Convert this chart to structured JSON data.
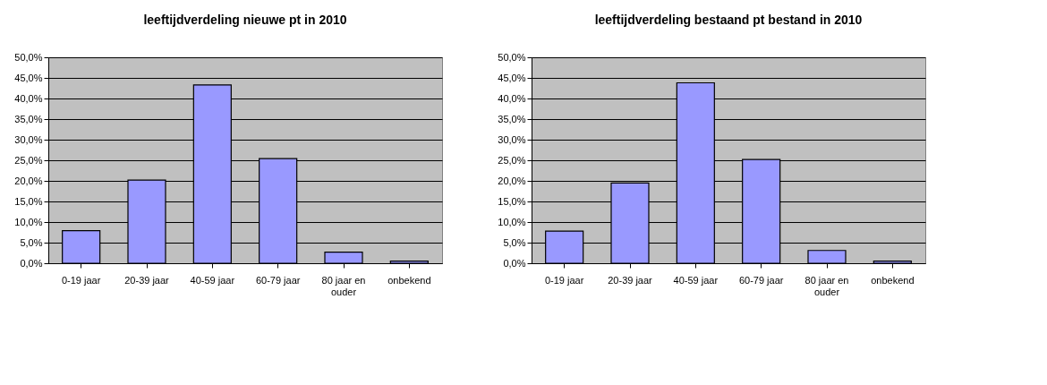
{
  "chart_data": [
    {
      "type": "bar",
      "title": "leeftijdverdeling nieuwe pt in 2010",
      "categories": [
        "0-19 jaar",
        "20-39 jaar",
        "40-59 jaar",
        "60-79 jaar",
        "80 jaar en ouder",
        "onbekend"
      ],
      "values": [
        7.9,
        20.2,
        43.3,
        25.4,
        2.7,
        0.5
      ],
      "color": "#9999ff",
      "ylim": [
        0,
        50
      ],
      "yticks": [
        {
          "value": 0,
          "label": "0,0%"
        },
        {
          "value": 5,
          "label": "5,0%"
        },
        {
          "value": 10,
          "label": "10,0%"
        },
        {
          "value": 15,
          "label": "15,0%"
        },
        {
          "value": 20,
          "label": "20,0%"
        },
        {
          "value": 25,
          "label": "25,0%"
        },
        {
          "value": 30,
          "label": "30,0%"
        },
        {
          "value": 35,
          "label": "35,0%"
        },
        {
          "value": 40,
          "label": "40,0%"
        },
        {
          "value": 45,
          "label": "45,0%"
        },
        {
          "value": 50,
          "label": "50,0%"
        }
      ],
      "grid": "y"
    },
    {
      "type": "bar",
      "title": "leeftijdverdeling bestaand pt bestand in 2010",
      "categories": [
        "0-19 jaar",
        "20-39 jaar",
        "40-59 jaar",
        "60-79 jaar",
        "80 jaar en ouder",
        "onbekend"
      ],
      "values": [
        7.8,
        19.5,
        43.8,
        25.2,
        3.1,
        0.5
      ],
      "color": "#9999ff",
      "ylim": [
        0,
        50
      ],
      "yticks": [
        {
          "value": 0,
          "label": "0,0%"
        },
        {
          "value": 5,
          "label": "5,0%"
        },
        {
          "value": 10,
          "label": "10,0%"
        },
        {
          "value": 15,
          "label": "15,0%"
        },
        {
          "value": 20,
          "label": "20,0%"
        },
        {
          "value": 25,
          "label": "25,0%"
        },
        {
          "value": 30,
          "label": "30,0%"
        },
        {
          "value": 35,
          "label": "35,0%"
        },
        {
          "value": 40,
          "label": "40,0%"
        },
        {
          "value": 45,
          "label": "45,0%"
        },
        {
          "value": 50,
          "label": "50,0%"
        }
      ],
      "grid": "y"
    }
  ]
}
